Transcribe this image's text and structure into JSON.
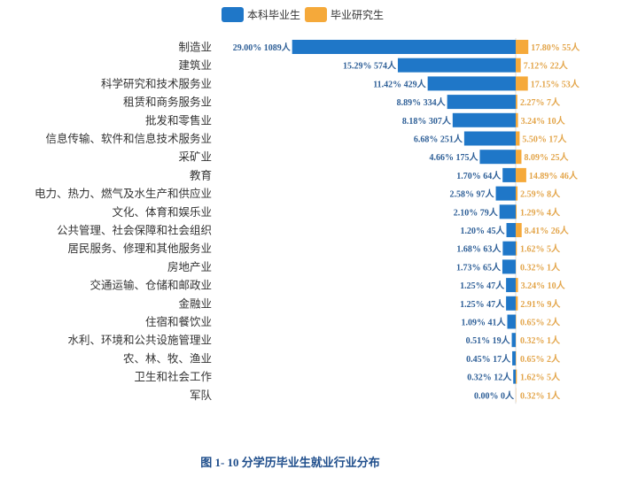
{
  "caption": "图 1- 10  分学历毕业生就业行业分布",
  "chart_data": {
    "type": "bar",
    "orientation": "horizontal-diverging",
    "legend_position": "top",
    "grid": false,
    "colors": {
      "本科毕业生": "#1f77c8",
      "毕业研究生": "#f5a93a"
    },
    "categories": [
      "制造业",
      "建筑业",
      "科学研究和技术服务业",
      "租赁和商务服务业",
      "批发和零售业",
      "信息传输、软件和信息技术服务业",
      "采矿业",
      "教育",
      "电力、热力、燃气及水生产和供应业",
      "文化、体育和娱乐业",
      "公共管理、社会保障和社会组织",
      "居民服务、修理和其他服务业",
      "房地产业",
      "交通运输、仓储和邮政业",
      "金融业",
      "住宿和餐饮业",
      "水利、环境和公共设施管理业",
      "农、林、牧、渔业",
      "卫生和社会工作",
      "军队"
    ],
    "series": [
      {
        "name": "本科毕业生",
        "percent": [
          29.0,
          15.29,
          11.42,
          8.89,
          8.18,
          6.68,
          4.66,
          1.7,
          2.58,
          2.1,
          1.2,
          1.68,
          1.73,
          1.25,
          1.25,
          1.09,
          0.51,
          0.45,
          0.32,
          0.0
        ],
        "count": [
          1089,
          574,
          429,
          334,
          307,
          251,
          175,
          64,
          97,
          79,
          45,
          63,
          65,
          47,
          47,
          41,
          19,
          17,
          12,
          0
        ],
        "labels": [
          "29.00%  1089人",
          "15.29%  574人",
          "11.42%  429人",
          "8.89%  334人",
          "8.18%  307人",
          "6.68%  251人",
          "4.66%  175人",
          "1.70%  64人",
          "2.58%  97人",
          "2.10%  79人",
          "1.20%  45人",
          "1.68%  63人",
          "1.73%  65人",
          "1.25%  47人",
          "1.25%  47人",
          "1.09%  41人",
          "0.51%  19人",
          "0.45%  17人",
          "0.32%  12人",
          "0.00%  0人"
        ]
      },
      {
        "name": "毕业研究生",
        "percent": [
          17.8,
          7.12,
          17.15,
          2.27,
          3.24,
          5.5,
          8.09,
          14.89,
          2.59,
          1.29,
          8.41,
          1.62,
          0.32,
          3.24,
          2.91,
          0.65,
          0.32,
          0.65,
          1.62,
          0.32
        ],
        "count": [
          55,
          22,
          53,
          7,
          10,
          17,
          25,
          46,
          8,
          4,
          26,
          5,
          1,
          10,
          9,
          2,
          1,
          2,
          5,
          1
        ],
        "labels": [
          "17.80%  55人",
          "7.12%  22人",
          "17.15%  53人",
          "2.27%  7人",
          "3.24%  10人",
          "5.50%  17人",
          "8.09%  25人",
          "14.89%  46人",
          "2.59%  8人",
          "1.29%  4人",
          "8.41%  26人",
          "1.62%  5人",
          "0.32%  1人",
          "3.24%  10人",
          "2.91%  9人",
          "0.65%  2人",
          "0.32%  1人",
          "0.65%  2人",
          "1.62%  5人",
          "0.32%  1人"
        ]
      }
    ]
  }
}
